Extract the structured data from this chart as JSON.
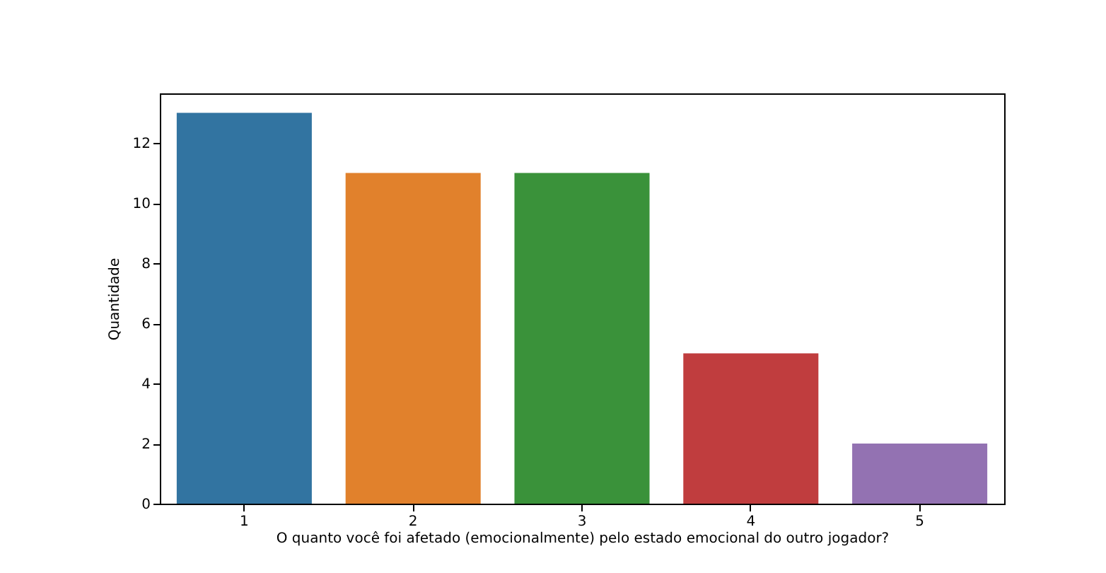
{
  "chart_data": {
    "type": "bar",
    "xlabel": "O quanto você foi afetado (emocionalmente) pelo estado emocional do outro jogador?",
    "ylabel": "Quantidade",
    "categories": [
      "1",
      "2",
      "3",
      "4",
      "5"
    ],
    "values": [
      13,
      11,
      11,
      5,
      2
    ],
    "colors": [
      "#3274a1",
      "#e1812c",
      "#3a923a",
      "#c03d3e",
      "#9372b2"
    ],
    "ylim": [
      0,
      13.65
    ],
    "yticks": [
      0,
      2,
      4,
      6,
      8,
      10,
      12
    ],
    "grid": false,
    "legend": false
  }
}
